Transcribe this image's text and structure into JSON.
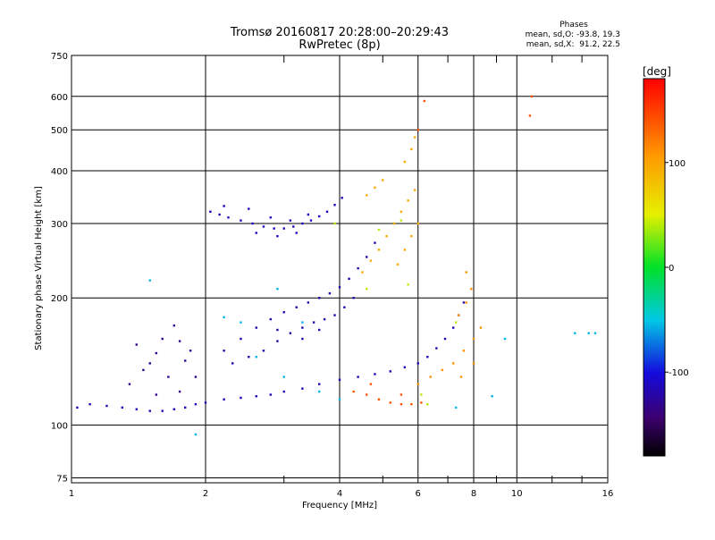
{
  "chart_data": {
    "type": "scatter",
    "title": "Tromsø 20160817 20:28:00–20:29:43",
    "subtitle": "RwPretec (8p)",
    "xlabel": "Frequency [MHz]",
    "ylabel": "Stationary phase Virtual Height [km]",
    "xscale": "log",
    "yscale": "log",
    "xlim": [
      1,
      16
    ],
    "ylim": [
      73,
      750
    ],
    "x_ticks": [
      1,
      2,
      4,
      6,
      8,
      10,
      16
    ],
    "y_ticks": [
      75,
      100,
      200,
      300,
      400,
      500,
      600,
      750
    ],
    "x_minor_ticks": [
      3,
      5,
      7,
      9,
      12,
      14
    ],
    "grid": true,
    "info": {
      "heading": "Phases",
      "line1": "mean, sd,O: -93.8, 19.3",
      "line2": "mean, sd,X:  91.2, 22.5"
    },
    "colorbar": {
      "label": "[deg]",
      "min": -180,
      "max": 180,
      "ticks": [
        100,
        0,
        -100
      ],
      "colormap": "rainbow"
    },
    "series": [
      {
        "color_value": -115,
        "points": [
          [
            1.03,
            110
          ],
          [
            1.1,
            112
          ],
          [
            1.2,
            111
          ],
          [
            1.3,
            110
          ],
          [
            1.4,
            109
          ],
          [
            1.5,
            108
          ],
          [
            1.6,
            108
          ],
          [
            1.7,
            109
          ],
          [
            1.8,
            110
          ],
          [
            1.9,
            112
          ],
          [
            2.0,
            113
          ],
          [
            2.2,
            115
          ],
          [
            2.4,
            116
          ],
          [
            2.6,
            117
          ],
          [
            2.8,
            118
          ],
          [
            3.0,
            120
          ],
          [
            3.3,
            122
          ],
          [
            3.6,
            125
          ],
          [
            4.0,
            128
          ],
          [
            4.4,
            130
          ],
          [
            4.8,
            132
          ],
          [
            5.2,
            134
          ],
          [
            5.6,
            137
          ],
          [
            6.0,
            140
          ],
          [
            6.3,
            145
          ],
          [
            6.6,
            152
          ],
          [
            6.9,
            160
          ],
          [
            7.2,
            170
          ],
          [
            7.4,
            182
          ],
          [
            7.6,
            195
          ]
        ]
      },
      {
        "color_value": -130,
        "points": [
          [
            1.35,
            125
          ],
          [
            1.45,
            135
          ],
          [
            1.55,
            148
          ],
          [
            1.6,
            160
          ],
          [
            1.7,
            172
          ],
          [
            1.75,
            158
          ],
          [
            1.8,
            142
          ],
          [
            1.9,
            130
          ],
          [
            1.5,
            140
          ],
          [
            1.65,
            130
          ],
          [
            1.75,
            120
          ],
          [
            1.4,
            155
          ],
          [
            1.55,
            118
          ],
          [
            1.85,
            150
          ]
        ]
      },
      {
        "color_value": -120,
        "points": [
          [
            2.2,
            150
          ],
          [
            2.4,
            160
          ],
          [
            2.6,
            170
          ],
          [
            2.8,
            178
          ],
          [
            3.0,
            185
          ],
          [
            3.2,
            190
          ],
          [
            3.4,
            195
          ],
          [
            3.6,
            200
          ],
          [
            3.8,
            205
          ],
          [
            4.0,
            212
          ],
          [
            4.2,
            222
          ],
          [
            4.4,
            235
          ],
          [
            4.6,
            250
          ],
          [
            4.8,
            270
          ],
          [
            2.3,
            140
          ],
          [
            2.5,
            145
          ],
          [
            2.7,
            150
          ],
          [
            2.9,
            158
          ],
          [
            3.1,
            165
          ],
          [
            3.3,
            170
          ],
          [
            3.5,
            175
          ],
          [
            3.7,
            178
          ],
          [
            3.9,
            182
          ],
          [
            4.1,
            190
          ],
          [
            2.9,
            168
          ],
          [
            3.3,
            160
          ],
          [
            3.6,
            168
          ],
          [
            4.3,
            200
          ]
        ]
      },
      {
        "color_value": -110,
        "points": [
          [
            2.05,
            320
          ],
          [
            2.15,
            315
          ],
          [
            2.25,
            310
          ],
          [
            2.4,
            305
          ],
          [
            2.55,
            300
          ],
          [
            2.7,
            295
          ],
          [
            2.85,
            292
          ],
          [
            3.0,
            292
          ],
          [
            3.15,
            295
          ],
          [
            3.3,
            300
          ],
          [
            3.45,
            305
          ],
          [
            3.6,
            312
          ],
          [
            3.75,
            320
          ],
          [
            3.9,
            332
          ],
          [
            4.05,
            345
          ],
          [
            2.2,
            330
          ],
          [
            2.5,
            325
          ],
          [
            2.8,
            310
          ],
          [
            3.1,
            305
          ],
          [
            3.4,
            315
          ],
          [
            2.6,
            285
          ],
          [
            2.9,
            280
          ],
          [
            3.2,
            285
          ]
        ]
      },
      {
        "color_value": 95,
        "points": [
          [
            4.5,
            230
          ],
          [
            4.7,
            245
          ],
          [
            4.9,
            260
          ],
          [
            5.1,
            280
          ],
          [
            5.3,
            300
          ],
          [
            5.5,
            320
          ],
          [
            5.7,
            340
          ],
          [
            5.9,
            360
          ],
          [
            5.6,
            260
          ],
          [
            5.8,
            280
          ],
          [
            6.0,
            300
          ],
          [
            5.4,
            240
          ],
          [
            4.6,
            350
          ],
          [
            4.8,
            365
          ],
          [
            5.0,
            380
          ],
          [
            5.6,
            420
          ],
          [
            5.8,
            450
          ],
          [
            5.9,
            480
          ]
        ]
      },
      {
        "color_value": 110,
        "points": [
          [
            6.0,
            125
          ],
          [
            6.4,
            130
          ],
          [
            6.8,
            135
          ],
          [
            7.2,
            140
          ],
          [
            7.6,
            150
          ],
          [
            8.0,
            160
          ],
          [
            8.3,
            170
          ],
          [
            7.4,
            182
          ],
          [
            7.7,
            195
          ],
          [
            7.9,
            210
          ],
          [
            7.7,
            230
          ],
          [
            8.0,
            140
          ],
          [
            7.5,
            130
          ]
        ]
      },
      {
        "color_value": 40,
        "points": [
          [
            4.6,
            210
          ],
          [
            4.9,
            290
          ],
          [
            5.5,
            305
          ],
          [
            3.9,
            300
          ],
          [
            6.1,
            118
          ],
          [
            6.3,
            112
          ],
          [
            7.3,
            175
          ],
          [
            5.7,
            215
          ]
        ]
      },
      {
        "color_value": 140,
        "points": [
          [
            4.3,
            120
          ],
          [
            4.6,
            118
          ],
          [
            4.9,
            115
          ],
          [
            5.2,
            113
          ],
          [
            5.5,
            112
          ],
          [
            5.8,
            112
          ],
          [
            6.1,
            113
          ],
          [
            4.7,
            125
          ],
          [
            5.5,
            118
          ],
          [
            6.2,
            585
          ],
          [
            10.8,
            600
          ],
          [
            10.7,
            540
          ],
          [
            6.0,
            500
          ]
        ]
      },
      {
        "color_value": -55,
        "points": [
          [
            2.2,
            180
          ],
          [
            2.6,
            145
          ],
          [
            3.0,
            130
          ],
          [
            3.6,
            120
          ],
          [
            4.0,
            115
          ],
          [
            2.4,
            175
          ],
          [
            2.9,
            210
          ],
          [
            3.3,
            175
          ],
          [
            7.3,
            110
          ],
          [
            8.8,
            117
          ],
          [
            9.4,
            160
          ],
          [
            13.5,
            165
          ],
          [
            14.5,
            165
          ],
          [
            15.0,
            165
          ],
          [
            1.5,
            220
          ],
          [
            1.9,
            95
          ]
        ]
      }
    ]
  }
}
